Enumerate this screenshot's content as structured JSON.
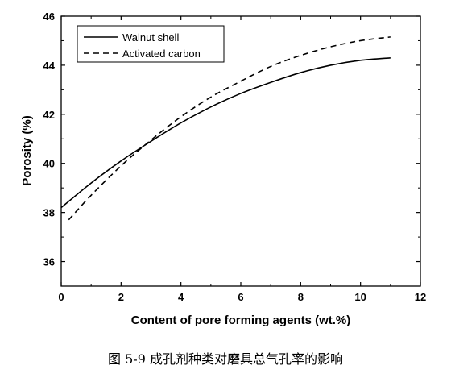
{
  "chart_data": {
    "type": "line",
    "title": "",
    "xlabel": "Content of pore forming agents (wt.%)",
    "ylabel": "Porosity (%)",
    "xlim": [
      0,
      12
    ],
    "ylim": [
      35,
      46
    ],
    "xticks": [
      0,
      2,
      4,
      6,
      8,
      10,
      12
    ],
    "yticks": [
      36,
      38,
      40,
      42,
      44,
      46
    ],
    "grid": false,
    "legend_position": "top-left",
    "series": [
      {
        "name": "Walnut shell",
        "style": "solid",
        "x": [
          0,
          1,
          2,
          3,
          4,
          5,
          6,
          7,
          8,
          9,
          10,
          11
        ],
        "y": [
          38.2,
          39.2,
          40.1,
          40.9,
          41.65,
          42.3,
          42.85,
          43.3,
          43.7,
          44.0,
          44.2,
          44.3
        ]
      },
      {
        "name": "Activated carbon",
        "style": "dashed",
        "x": [
          0.25,
          1,
          2,
          3,
          4,
          5,
          6,
          7,
          8,
          9,
          10,
          11
        ],
        "y": [
          37.7,
          38.7,
          39.9,
          40.95,
          41.9,
          42.7,
          43.35,
          43.95,
          44.4,
          44.75,
          45.0,
          45.15
        ]
      }
    ]
  },
  "caption": "图 5-9  成孔剂种类对磨具总气孔率的影响"
}
